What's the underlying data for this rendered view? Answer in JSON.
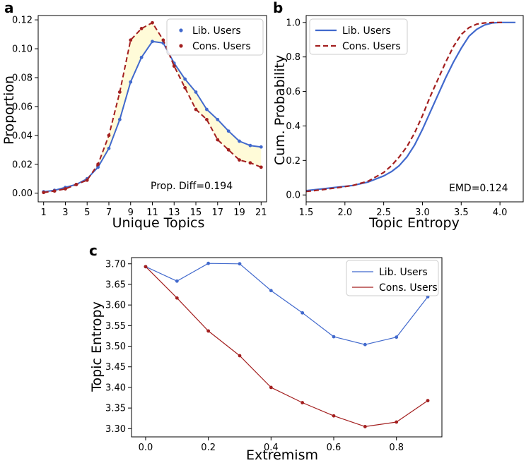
{
  "colors": {
    "lib": "#4169cd",
    "cons": "#a31f1f",
    "fill": "#fffbd8"
  },
  "chart_data": [
    {
      "panel": "a",
      "type": "line",
      "xlabel": "Unique Topics",
      "ylabel": "Proportion",
      "xlim": [
        0.5,
        21.5
      ],
      "ylim": [
        -0.006,
        0.123
      ],
      "xticks": [
        1,
        3,
        5,
        7,
        9,
        11,
        13,
        15,
        17,
        19,
        21
      ],
      "yticks": [
        0.0,
        0.02,
        0.04,
        0.06,
        0.08,
        0.1,
        0.12
      ],
      "ytick_labels": [
        "0.00",
        "0.02",
        "0.04",
        "0.06",
        "0.08",
        "0.10",
        "0.12"
      ],
      "x": [
        1,
        2,
        3,
        4,
        5,
        6,
        7,
        8,
        9,
        10,
        11,
        12,
        13,
        14,
        15,
        16,
        17,
        18,
        19,
        20,
        21
      ],
      "series": [
        {
          "name": "Lib. Users",
          "key": "lib",
          "style": "solid",
          "values": [
            0.001,
            0.002,
            0.004,
            0.006,
            0.01,
            0.018,
            0.031,
            0.051,
            0.077,
            0.094,
            0.105,
            0.104,
            0.09,
            0.079,
            0.07,
            0.058,
            0.051,
            0.043,
            0.036,
            0.033,
            0.032
          ]
        },
        {
          "name": "Cons. Users",
          "key": "cons",
          "style": "dashed",
          "values": [
            0.0005,
            0.0015,
            0.003,
            0.006,
            0.009,
            0.02,
            0.04,
            0.07,
            0.106,
            0.114,
            0.118,
            0.106,
            0.088,
            0.073,
            0.058,
            0.051,
            0.037,
            0.03,
            0.023,
            0.021,
            0.018
          ]
        }
      ],
      "legend_position": "top-right",
      "annotation": "Prop. Diff=0.194"
    },
    {
      "panel": "b",
      "type": "line",
      "xlabel": "Topic Entropy",
      "ylabel": "Cum. Probability",
      "xlim": [
        1.5,
        4.3
      ],
      "ylim": [
        -0.04,
        1.04
      ],
      "xticks": [
        1.5,
        2.0,
        2.5,
        3.0,
        3.5,
        4.0
      ],
      "xtick_labels": [
        "1.5",
        "2.0",
        "2.5",
        "3.0",
        "3.5",
        "4.0"
      ],
      "yticks": [
        0.0,
        0.2,
        0.4,
        0.6,
        0.8,
        1.0
      ],
      "ytick_labels": [
        "0.0",
        "0.2",
        "0.4",
        "0.6",
        "0.8",
        "1.0"
      ],
      "series": [
        {
          "name": "Lib. Users",
          "key": "lib",
          "style": "solid",
          "x": [
            1.5,
            1.7,
            1.9,
            2.1,
            2.3,
            2.5,
            2.6,
            2.7,
            2.8,
            2.9,
            3.0,
            3.1,
            3.2,
            3.3,
            3.4,
            3.5,
            3.6,
            3.7,
            3.8,
            3.9,
            4.0,
            4.2
          ],
          "y": [
            0.025,
            0.035,
            0.045,
            0.055,
            0.075,
            0.11,
            0.135,
            0.17,
            0.22,
            0.29,
            0.38,
            0.48,
            0.58,
            0.68,
            0.77,
            0.85,
            0.92,
            0.96,
            0.985,
            0.997,
            1.0,
            1.0
          ]
        },
        {
          "name": "Cons. Users",
          "key": "cons",
          "style": "dashed",
          "x": [
            1.5,
            1.7,
            1.9,
            2.1,
            2.3,
            2.5,
            2.6,
            2.7,
            2.8,
            2.9,
            3.0,
            3.1,
            3.2,
            3.3,
            3.4,
            3.5,
            3.6,
            3.7,
            3.8,
            3.9,
            4.0,
            4.05
          ],
          "y": [
            0.02,
            0.03,
            0.042,
            0.055,
            0.08,
            0.13,
            0.17,
            0.22,
            0.28,
            0.36,
            0.46,
            0.57,
            0.67,
            0.77,
            0.86,
            0.93,
            0.97,
            0.99,
            0.997,
            1.0,
            1.0,
            1.0
          ]
        }
      ],
      "legend_position": "top-left",
      "annotation": "EMD=0.124"
    },
    {
      "panel": "c",
      "type": "line",
      "xlabel": "Extremism",
      "ylabel": "Topic Entropy",
      "xlim": [
        -0.045,
        0.945
      ],
      "ylim": [
        3.28,
        3.715
      ],
      "xticks": [
        0.0,
        0.2,
        0.4,
        0.6,
        0.8
      ],
      "xtick_labels": [
        "0.0",
        "0.2",
        "0.4",
        "0.6",
        "0.8"
      ],
      "yticks": [
        3.3,
        3.35,
        3.4,
        3.45,
        3.5,
        3.55,
        3.6,
        3.65,
        3.7
      ],
      "ytick_labels": [
        "3.30",
        "3.35",
        "3.40",
        "3.45",
        "3.50",
        "3.55",
        "3.60",
        "3.65",
        "3.70"
      ],
      "x": [
        0.0,
        0.1,
        0.2,
        0.3,
        0.4,
        0.5,
        0.6,
        0.7,
        0.8,
        0.9
      ],
      "series": [
        {
          "name": "Lib. Users",
          "key": "lib",
          "style": "solid",
          "values": [
            3.693,
            3.658,
            3.701,
            3.7,
            3.635,
            3.581,
            3.523,
            3.504,
            3.522,
            3.62
          ]
        },
        {
          "name": "Cons. Users",
          "key": "cons",
          "style": "solid",
          "values": [
            3.693,
            3.617,
            3.537,
            3.477,
            3.4,
            3.363,
            3.331,
            3.305,
            3.316,
            3.368
          ]
        }
      ],
      "legend_position": "top-right"
    }
  ]
}
